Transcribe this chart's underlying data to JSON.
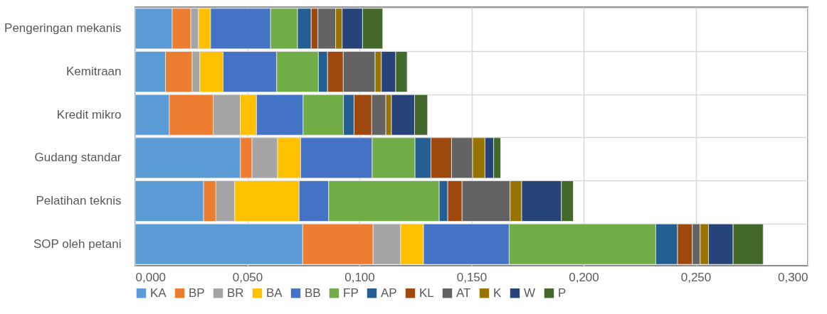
{
  "chart_data": {
    "type": "bar",
    "orientation": "horizontal",
    "stacked": true,
    "categories": [
      "Pengeringan mekanis",
      "Kemitraan",
      "Kredit mikro",
      "Gudang standar",
      "Pelatihan teknis",
      "SOP oleh petani"
    ],
    "series": [
      {
        "name": "KA",
        "color": "#5b9bd5",
        "values": [
          0.0165,
          0.0135,
          0.0152,
          0.0469,
          0.0305,
          0.0747
        ]
      },
      {
        "name": "BP",
        "color": "#ed7d31",
        "values": [
          0.0083,
          0.0119,
          0.0196,
          0.0052,
          0.0055,
          0.0314
        ]
      },
      {
        "name": "BR",
        "color": "#a5a5a5",
        "values": [
          0.0034,
          0.0034,
          0.0121,
          0.0114,
          0.0084,
          0.0123
        ]
      },
      {
        "name": "BA",
        "color": "#ffc000",
        "values": [
          0.0054,
          0.0104,
          0.0072,
          0.0103,
          0.0287,
          0.0102
        ]
      },
      {
        "name": "BB",
        "color": "#4472c4",
        "values": [
          0.0268,
          0.0239,
          0.0208,
          0.0319,
          0.0132,
          0.0382
        ]
      },
      {
        "name": "FP",
        "color": "#70ad47",
        "values": [
          0.012,
          0.0186,
          0.018,
          0.0191,
          0.0493,
          0.0654
        ]
      },
      {
        "name": "AP",
        "color": "#255e91",
        "values": [
          0.0061,
          0.0041,
          0.0047,
          0.0071,
          0.0038,
          0.0097
        ]
      },
      {
        "name": "KL",
        "color": "#9e480e",
        "values": [
          0.003,
          0.007,
          0.0079,
          0.0092,
          0.0064,
          0.0066
        ]
      },
      {
        "name": "AT",
        "color": "#636363",
        "values": [
          0.0079,
          0.0142,
          0.0063,
          0.0094,
          0.0214,
          0.0035
        ]
      },
      {
        "name": "K",
        "color": "#997300",
        "values": [
          0.0029,
          0.0028,
          0.0025,
          0.0055,
          0.0052,
          0.0037
        ]
      },
      {
        "name": "W",
        "color": "#264478",
        "values": [
          0.0091,
          0.0064,
          0.0103,
          0.0039,
          0.0177,
          0.011
        ]
      },
      {
        "name": "P",
        "color": "#43682b",
        "values": [
          0.009,
          0.0051,
          0.0058,
          0.0031,
          0.0053,
          0.0134
        ]
      }
    ],
    "xlim": [
      0,
      0.3
    ],
    "xticks": [
      {
        "value": 0,
        "label": "0,000"
      },
      {
        "value": 0.05,
        "label": "0,050"
      },
      {
        "value": 0.1,
        "label": "0,100"
      },
      {
        "value": 0.15,
        "label": "0,150"
      },
      {
        "value": 0.2,
        "label": "0,200"
      },
      {
        "value": 0.25,
        "label": "0,250"
      },
      {
        "value": 0.3,
        "label": "0,300"
      }
    ],
    "grid": true,
    "legend": "bottom"
  }
}
